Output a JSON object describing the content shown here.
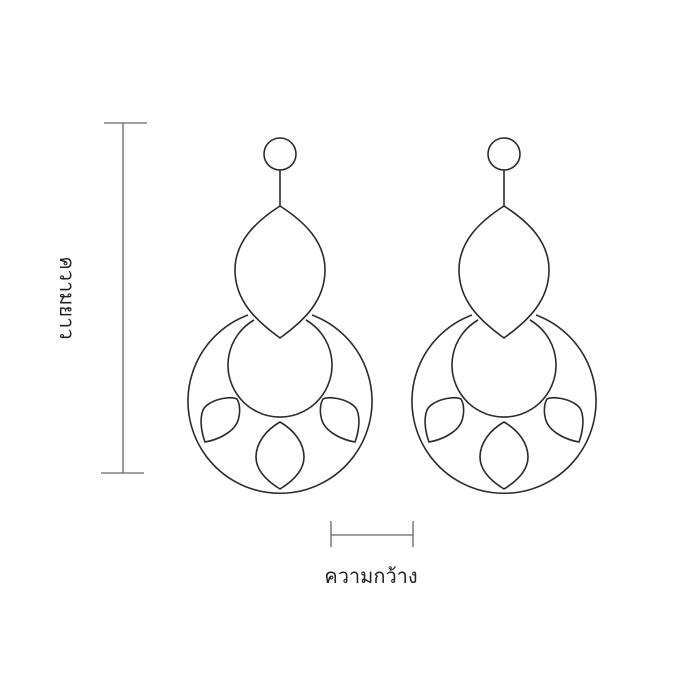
{
  "labels": {
    "height": "ความยาว",
    "width": "ความกว้าง"
  },
  "colors": {
    "outline": "#2a2a2a",
    "dimension_line": "#666666",
    "background": "#ffffff"
  }
}
